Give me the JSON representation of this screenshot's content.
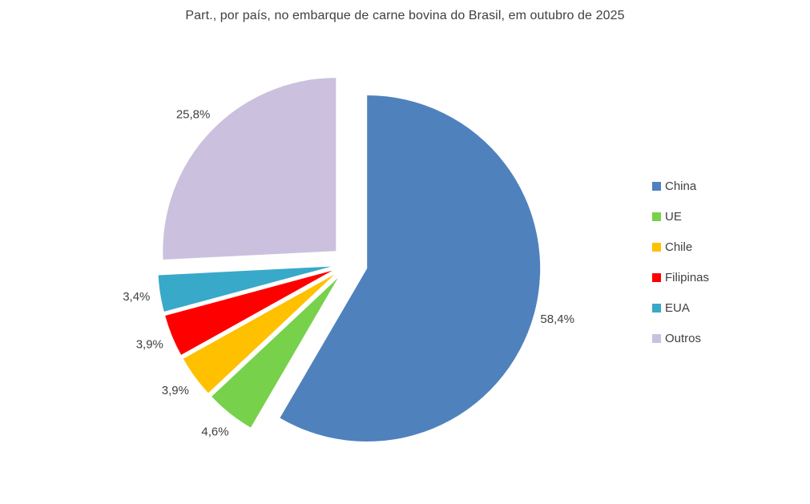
{
  "title": "Part., por país, no embarque de carne bovina do Brasil, em outubro de 2025",
  "colors": {
    "background": "#ffffff",
    "text": "#404040"
  },
  "chart_data": {
    "type": "pie",
    "title": "Part., por país, no embarque de carne bovina do Brasil, em outubro de 2025",
    "exploded": true,
    "start_angle_deg": 0,
    "direction": "clockwise",
    "legend_position": "right",
    "grid": false,
    "categories": [
      "China",
      "UE",
      "Chile",
      "Filipinas",
      "EUA",
      "Outros"
    ],
    "values": [
      58.4,
      4.6,
      3.9,
      3.9,
      3.4,
      25.8
    ],
    "labels": [
      "58,4%",
      "4,6%",
      "3,9%",
      "3,9%",
      "3,4%",
      "25,8%"
    ],
    "colors": [
      "#4f81bd",
      "#77d14b",
      "#ffc000",
      "#ff0000",
      "#38a9c9",
      "#cbc0dd"
    ]
  }
}
